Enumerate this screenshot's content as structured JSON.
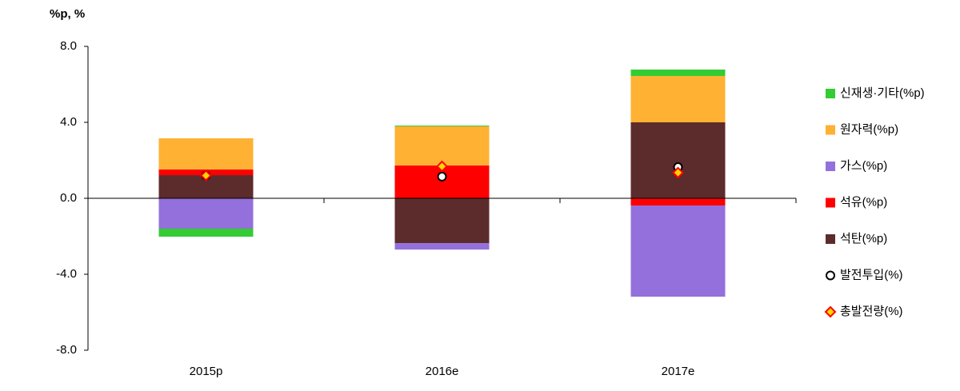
{
  "chart_data": {
    "type": "bar",
    "stacked": true,
    "y_unit_label": "%p, %",
    "categories": [
      "2015p",
      "2016e",
      "2017e"
    ],
    "ylim": [
      -8,
      8
    ],
    "yticks": [
      {
        "value": -8,
        "label": "-8.0"
      },
      {
        "value": -4,
        "label": "-4.0"
      },
      {
        "value": 0,
        "label": "0.0"
      },
      {
        "value": 4,
        "label": "4.0"
      },
      {
        "value": 8,
        "label": "8.0"
      }
    ],
    "grid": false,
    "legend": "right",
    "series": [
      {
        "name": "신재생·기타(%p)",
        "color": "#33cc33",
        "type": "bar",
        "values": [
          -0.42,
          0.04,
          0.34
        ]
      },
      {
        "name": "원자력(%p)",
        "color": "#ffb133",
        "type": "bar",
        "values": [
          1.64,
          2.06,
          2.44
        ]
      },
      {
        "name": "가스(%p)",
        "color": "#9370db",
        "type": "bar",
        "values": [
          -1.6,
          -0.34,
          -4.8
        ]
      },
      {
        "name": "석유(%p)",
        "color": "#ff0000",
        "type": "bar",
        "values": [
          0.3,
          1.73,
          -0.38
        ]
      },
      {
        "name": "석탄(%p)",
        "color": "#5c2b2b",
        "type": "bar",
        "values": [
          1.22,
          -2.36,
          4.0
        ]
      },
      {
        "name": "발전투입(%)",
        "color": "#000000",
        "type": "circle",
        "values": [
          1.2,
          1.14,
          1.64
        ]
      },
      {
        "name": "총발전량(%)",
        "color": "#ff0000",
        "type": "diamond",
        "values": [
          1.2,
          1.68,
          1.35
        ]
      }
    ]
  }
}
